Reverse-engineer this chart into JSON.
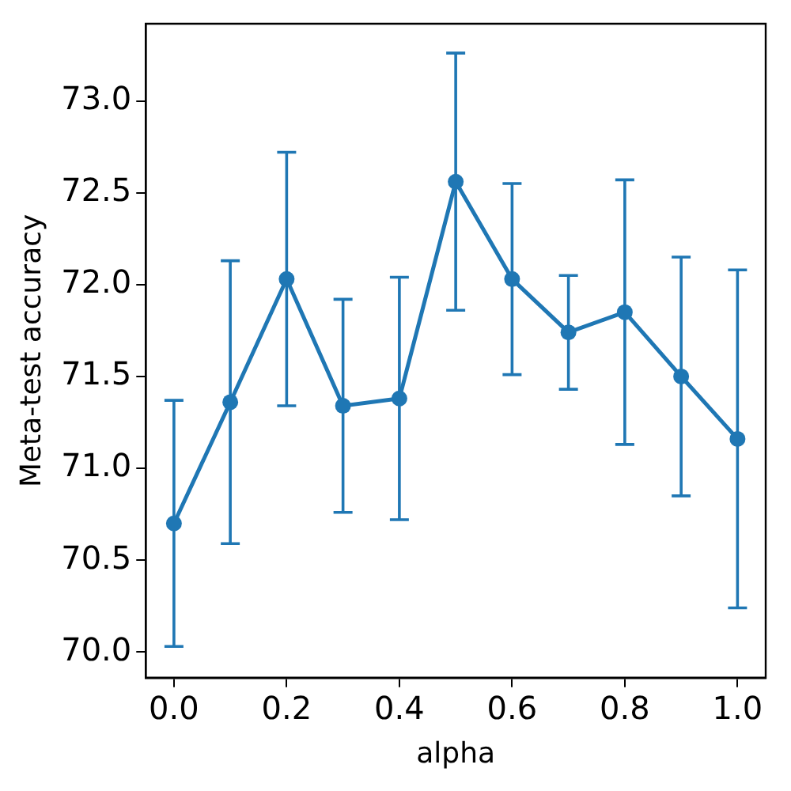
{
  "chart_data": {
    "type": "line",
    "xlabel": "alpha",
    "ylabel": "Meta-test accuracy",
    "x": [
      0.0,
      0.1,
      0.2,
      0.3,
      0.4,
      0.5,
      0.6,
      0.7,
      0.8,
      0.9,
      1.0
    ],
    "series": [
      {
        "color": "#1f77b4",
        "values": [
          70.7,
          71.36,
          72.03,
          71.34,
          71.38,
          72.56,
          72.03,
          71.74,
          71.85,
          71.5,
          71.16
        ],
        "errors": [
          0.67,
          0.77,
          0.69,
          0.58,
          0.66,
          0.7,
          0.52,
          0.31,
          0.72,
          0.65,
          0.92
        ]
      }
    ],
    "xlim": [
      -0.05,
      1.05
    ],
    "xticks": [
      {
        "value": 0,
        "label": "0.0"
      },
      {
        "value": 0.2,
        "label": "0.2"
      },
      {
        "value": 0.4,
        "label": "0.4"
      },
      {
        "value": 0.6,
        "label": "0.6"
      },
      {
        "value": 0.8,
        "label": "0.8"
      },
      {
        "value": 1,
        "label": "1.0"
      }
    ],
    "ylim": [
      69.86,
      73.42
    ],
    "yticks": [
      {
        "value": 70,
        "label": "70.0"
      },
      {
        "value": 70.5,
        "label": "70.5"
      },
      {
        "value": 71,
        "label": "71.0"
      },
      {
        "value": 71.5,
        "label": "71.5"
      },
      {
        "value": 72,
        "label": "72.0"
      },
      {
        "value": 72.5,
        "label": "72.5"
      },
      {
        "value": 73,
        "label": "73.0"
      }
    ],
    "marker": "circle",
    "line_style": "solid",
    "grid": false,
    "legend": false
  }
}
